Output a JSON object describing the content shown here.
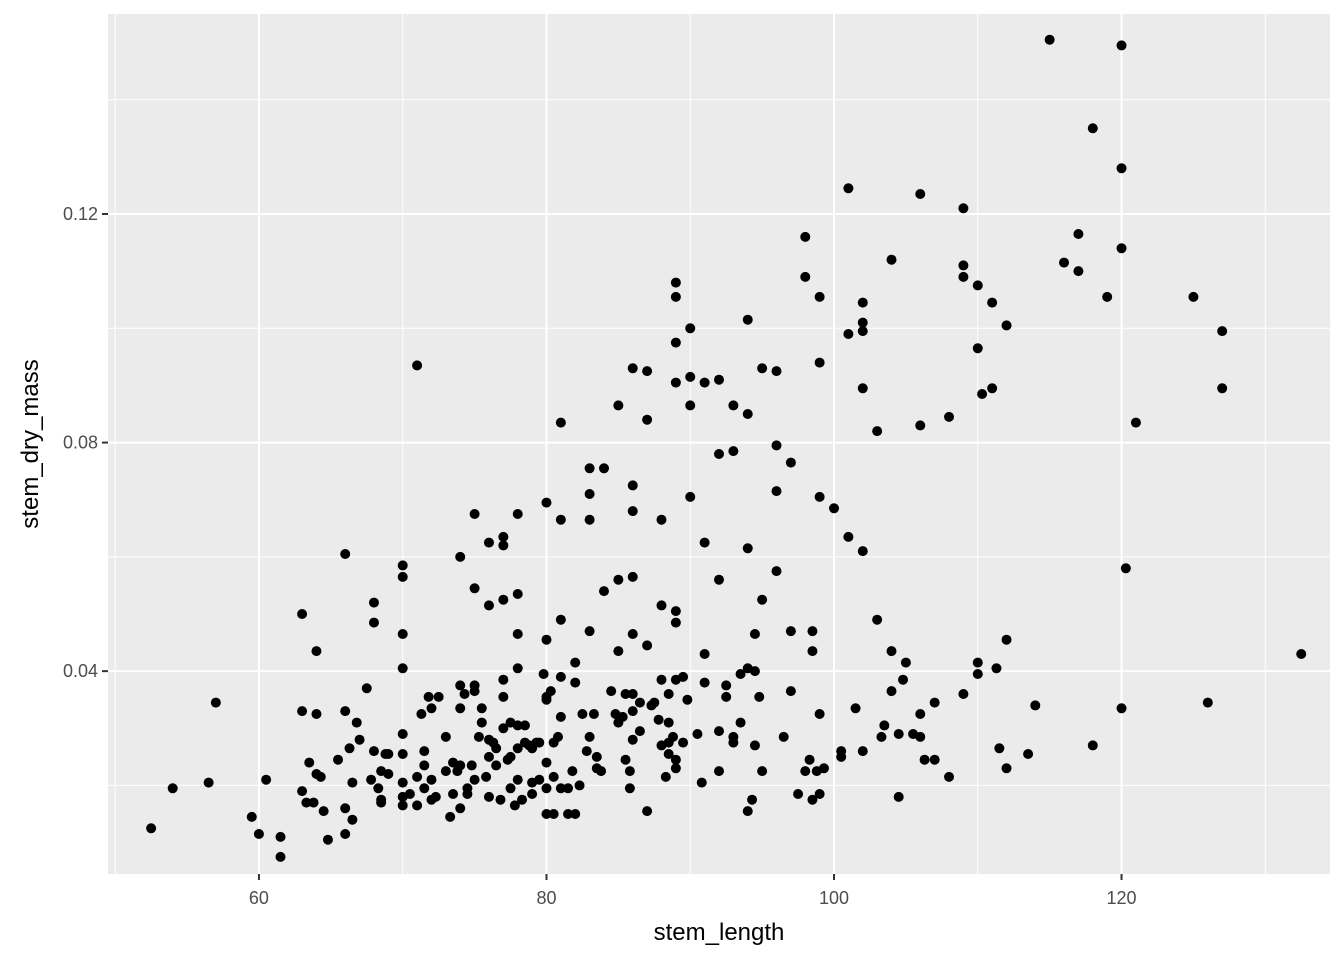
{
  "chart_data": {
    "type": "scatter",
    "title": "",
    "xlabel": "stem_length",
    "ylabel": "stem_dry_mass",
    "xlim": [
      49.5,
      134.5
    ],
    "ylim": [
      0.0045,
      0.155
    ],
    "x_ticks": [
      60,
      80,
      100,
      120
    ],
    "x_tick_labels": [
      "60",
      "80",
      "100",
      "120"
    ],
    "y_ticks": [
      0.04,
      0.08,
      0.12
    ],
    "y_tick_labels": [
      "0.04",
      "0.08",
      "0.12"
    ],
    "grid": true,
    "colors": {
      "panel": "#ebebeb",
      "grid": "#ffffff",
      "point": "#000000"
    },
    "points": [
      [
        52.5,
        0.0125
      ],
      [
        54,
        0.0195
      ],
      [
        56.5,
        0.0205
      ],
      [
        57,
        0.0345
      ],
      [
        59.5,
        0.0145
      ],
      [
        60,
        0.0115
      ],
      [
        60.5,
        0.021
      ],
      [
        61.5,
        0.011
      ],
      [
        61.5,
        0.0075
      ],
      [
        63,
        0.05
      ],
      [
        63,
        0.033
      ],
      [
        63,
        0.019
      ],
      [
        63.3,
        0.017
      ],
      [
        63.5,
        0.024
      ],
      [
        63.8,
        0.017
      ],
      [
        64,
        0.022
      ],
      [
        64,
        0.0325
      ],
      [
        64,
        0.0435
      ],
      [
        64.3,
        0.0215
      ],
      [
        64.5,
        0.0155
      ],
      [
        64.8,
        0.0105
      ],
      [
        65.5,
        0.0245
      ],
      [
        66,
        0.016
      ],
      [
        66,
        0.0605
      ],
      [
        66,
        0.033
      ],
      [
        66,
        0.0115
      ],
      [
        66.3,
        0.0265
      ],
      [
        66.5,
        0.0205
      ],
      [
        66.5,
        0.014
      ],
      [
        66.8,
        0.031
      ],
      [
        67,
        0.028
      ],
      [
        67.5,
        0.037
      ],
      [
        67.8,
        0.021
      ],
      [
        68,
        0.052
      ],
      [
        68,
        0.0485
      ],
      [
        68,
        0.026
      ],
      [
        68.3,
        0.0195
      ],
      [
        68.5,
        0.0175
      ],
      [
        68.5,
        0.0225
      ],
      [
        68.5,
        0.017
      ],
      [
        68.8,
        0.0255
      ],
      [
        69,
        0.0255
      ],
      [
        69,
        0.022
      ],
      [
        70,
        0.0585
      ],
      [
        70,
        0.0565
      ],
      [
        70,
        0.0465
      ],
      [
        70,
        0.0405
      ],
      [
        70,
        0.029
      ],
      [
        70,
        0.0255
      ],
      [
        70,
        0.0205
      ],
      [
        70,
        0.018
      ],
      [
        70,
        0.0165
      ],
      [
        70.5,
        0.0185
      ],
      [
        71,
        0.0935
      ],
      [
        71,
        0.0215
      ],
      [
        71,
        0.0165
      ],
      [
        71.3,
        0.0325
      ],
      [
        71.5,
        0.026
      ],
      [
        71.5,
        0.0235
      ],
      [
        71.5,
        0.0195
      ],
      [
        71.8,
        0.0355
      ],
      [
        72,
        0.0335
      ],
      [
        72,
        0.021
      ],
      [
        72,
        0.0175
      ],
      [
        72.3,
        0.018
      ],
      [
        72.5,
        0.0355
      ],
      [
        73,
        0.0285
      ],
      [
        73,
        0.0225
      ],
      [
        73.3,
        0.0145
      ],
      [
        73.5,
        0.024
      ],
      [
        73.5,
        0.0185
      ],
      [
        73.8,
        0.0225
      ],
      [
        74,
        0.0375
      ],
      [
        74,
        0.0335
      ],
      [
        74,
        0.0235
      ],
      [
        74,
        0.016
      ],
      [
        74,
        0.06
      ],
      [
        74.3,
        0.036
      ],
      [
        74.5,
        0.0185
      ],
      [
        74.5,
        0.0195
      ],
      [
        74.8,
        0.0235
      ],
      [
        75,
        0.0545
      ],
      [
        75,
        0.0375
      ],
      [
        75,
        0.0365
      ],
      [
        75,
        0.0675
      ],
      [
        75,
        0.021
      ],
      [
        75.3,
        0.0285
      ],
      [
        75.5,
        0.0335
      ],
      [
        75.5,
        0.031
      ],
      [
        75.8,
        0.0215
      ],
      [
        76,
        0.0625
      ],
      [
        76,
        0.0515
      ],
      [
        76,
        0.028
      ],
      [
        76,
        0.025
      ],
      [
        76,
        0.018
      ],
      [
        76.3,
        0.0275
      ],
      [
        76.5,
        0.0265
      ],
      [
        76.5,
        0.0235
      ],
      [
        76.8,
        0.0175
      ],
      [
        77,
        0.0635
      ],
      [
        77,
        0.062
      ],
      [
        77,
        0.0525
      ],
      [
        77,
        0.0385
      ],
      [
        77,
        0.0355
      ],
      [
        77,
        0.03
      ],
      [
        77.3,
        0.0245
      ],
      [
        77.5,
        0.031
      ],
      [
        77.5,
        0.025
      ],
      [
        77.5,
        0.0195
      ],
      [
        77.8,
        0.0165
      ],
      [
        78,
        0.0675
      ],
      [
        78,
        0.0535
      ],
      [
        78,
        0.0465
      ],
      [
        78,
        0.0405
      ],
      [
        78,
        0.0305
      ],
      [
        78,
        0.0265
      ],
      [
        78,
        0.021
      ],
      [
        78.3,
        0.0175
      ],
      [
        78.5,
        0.0305
      ],
      [
        78.5,
        0.0275
      ],
      [
        78.8,
        0.027
      ],
      [
        79,
        0.0265
      ],
      [
        79,
        0.0205
      ],
      [
        79,
        0.0185
      ],
      [
        79.3,
        0.0275
      ],
      [
        79.5,
        0.0275
      ],
      [
        79.5,
        0.021
      ],
      [
        79.8,
        0.0395
      ],
      [
        80,
        0.0695
      ],
      [
        80,
        0.0455
      ],
      [
        80,
        0.0355
      ],
      [
        80,
        0.035
      ],
      [
        80,
        0.024
      ],
      [
        80,
        0.0195
      ],
      [
        80,
        0.015
      ],
      [
        80.3,
        0.0365
      ],
      [
        80.5,
        0.0275
      ],
      [
        80.5,
        0.0215
      ],
      [
        80.5,
        0.015
      ],
      [
        80.8,
        0.0285
      ],
      [
        81,
        0.0835
      ],
      [
        81,
        0.0665
      ],
      [
        81,
        0.049
      ],
      [
        81,
        0.039
      ],
      [
        81,
        0.032
      ],
      [
        81,
        0.0195
      ],
      [
        81.5,
        0.0195
      ],
      [
        81.5,
        0.015
      ],
      [
        81.8,
        0.0225
      ],
      [
        82,
        0.0415
      ],
      [
        82,
        0.038
      ],
      [
        82,
        0.015
      ],
      [
        82.3,
        0.02
      ],
      [
        82.5,
        0.0325
      ],
      [
        82.8,
        0.026
      ],
      [
        83,
        0.0755
      ],
      [
        83,
        0.071
      ],
      [
        83,
        0.0665
      ],
      [
        83,
        0.047
      ],
      [
        83,
        0.0285
      ],
      [
        83.3,
        0.0325
      ],
      [
        83.5,
        0.025
      ],
      [
        83.5,
        0.023
      ],
      [
        83.8,
        0.0225
      ],
      [
        84,
        0.0755
      ],
      [
        84,
        0.054
      ],
      [
        84.5,
        0.0365
      ],
      [
        84.8,
        0.0325
      ],
      [
        85,
        0.0865
      ],
      [
        85,
        0.056
      ],
      [
        85,
        0.0435
      ],
      [
        85,
        0.031
      ],
      [
        85.3,
        0.032
      ],
      [
        85.5,
        0.036
      ],
      [
        85.5,
        0.0245
      ],
      [
        85.8,
        0.0225
      ],
      [
        85.8,
        0.0195
      ],
      [
        86,
        0.093
      ],
      [
        86,
        0.0725
      ],
      [
        86,
        0.068
      ],
      [
        86,
        0.0565
      ],
      [
        86,
        0.0465
      ],
      [
        86,
        0.036
      ],
      [
        86,
        0.033
      ],
      [
        86,
        0.028
      ],
      [
        86.5,
        0.0345
      ],
      [
        86.5,
        0.0295
      ],
      [
        87,
        0.0925
      ],
      [
        87,
        0.084
      ],
      [
        87,
        0.0445
      ],
      [
        87,
        0.0155
      ],
      [
        87.3,
        0.034
      ],
      [
        87.5,
        0.0345
      ],
      [
        87.8,
        0.0315
      ],
      [
        88,
        0.0665
      ],
      [
        88,
        0.0515
      ],
      [
        88,
        0.0385
      ],
      [
        88,
        0.027
      ],
      [
        88.3,
        0.0215
      ],
      [
        88.5,
        0.036
      ],
      [
        88.5,
        0.031
      ],
      [
        88.5,
        0.0275
      ],
      [
        88.5,
        0.0255
      ],
      [
        88.8,
        0.0285
      ],
      [
        89,
        0.108
      ],
      [
        89,
        0.1055
      ],
      [
        89,
        0.0975
      ],
      [
        89,
        0.0905
      ],
      [
        89,
        0.0505
      ],
      [
        89,
        0.0485
      ],
      [
        89,
        0.0385
      ],
      [
        89,
        0.0245
      ],
      [
        89,
        0.023
      ],
      [
        89.5,
        0.039
      ],
      [
        89.5,
        0.0275
      ],
      [
        89.8,
        0.035
      ],
      [
        90,
        0.1
      ],
      [
        90,
        0.0915
      ],
      [
        90,
        0.0865
      ],
      [
        90,
        0.0705
      ],
      [
        90.5,
        0.029
      ],
      [
        90.8,
        0.0205
      ],
      [
        91,
        0.0905
      ],
      [
        91,
        0.0625
      ],
      [
        91,
        0.043
      ],
      [
        91,
        0.038
      ],
      [
        92,
        0.091
      ],
      [
        92,
        0.078
      ],
      [
        92,
        0.056
      ],
      [
        92,
        0.0295
      ],
      [
        92,
        0.0225
      ],
      [
        92.5,
        0.0355
      ],
      [
        92.5,
        0.0375
      ],
      [
        93,
        0.0865
      ],
      [
        93,
        0.0785
      ],
      [
        93,
        0.0285
      ],
      [
        93,
        0.0275
      ],
      [
        93.5,
        0.0395
      ],
      [
        93.5,
        0.031
      ],
      [
        94,
        0.1015
      ],
      [
        94,
        0.085
      ],
      [
        94,
        0.0615
      ],
      [
        94,
        0.0405
      ],
      [
        94,
        0.0155
      ],
      [
        94.3,
        0.0175
      ],
      [
        94.5,
        0.0465
      ],
      [
        94.5,
        0.04
      ],
      [
        94.5,
        0.027
      ],
      [
        94.8,
        0.0355
      ],
      [
        95,
        0.093
      ],
      [
        95,
        0.0525
      ],
      [
        95,
        0.0225
      ],
      [
        96,
        0.0795
      ],
      [
        96,
        0.0925
      ],
      [
        96,
        0.0715
      ],
      [
        96,
        0.0575
      ],
      [
        96.5,
        0.0285
      ],
      [
        97,
        0.0765
      ],
      [
        97,
        0.0365
      ],
      [
        97,
        0.047
      ],
      [
        97.5,
        0.0185
      ],
      [
        98,
        0.116
      ],
      [
        98,
        0.109
      ],
      [
        98,
        0.0225
      ],
      [
        98.3,
        0.0245
      ],
      [
        98.5,
        0.047
      ],
      [
        98.5,
        0.0435
      ],
      [
        98.5,
        0.0175
      ],
      [
        98.8,
        0.0225
      ],
      [
        99,
        0.1055
      ],
      [
        99,
        0.094
      ],
      [
        99,
        0.0705
      ],
      [
        99,
        0.0325
      ],
      [
        99,
        0.0185
      ],
      [
        99.3,
        0.023
      ],
      [
        100,
        0.0685
      ],
      [
        100.5,
        0.026
      ],
      [
        100.5,
        0.025
      ],
      [
        101,
        0.1245
      ],
      [
        101,
        0.099
      ],
      [
        101,
        0.0635
      ],
      [
        101.5,
        0.0335
      ],
      [
        102,
        0.1045
      ],
      [
        102,
        0.101
      ],
      [
        102,
        0.0995
      ],
      [
        102,
        0.0895
      ],
      [
        102,
        0.061
      ],
      [
        102,
        0.026
      ],
      [
        103,
        0.082
      ],
      [
        103,
        0.049
      ],
      [
        103.3,
        0.0285
      ],
      [
        103.5,
        0.0305
      ],
      [
        104,
        0.112
      ],
      [
        104,
        0.0435
      ],
      [
        104,
        0.0365
      ],
      [
        104.5,
        0.018
      ],
      [
        104.5,
        0.029
      ],
      [
        104.8,
        0.0385
      ],
      [
        105,
        0.0415
      ],
      [
        105.5,
        0.029
      ],
      [
        106,
        0.1235
      ],
      [
        106,
        0.083
      ],
      [
        106,
        0.0325
      ],
      [
        106,
        0.0285
      ],
      [
        106.3,
        0.0245
      ],
      [
        107,
        0.0245
      ],
      [
        107,
        0.0345
      ],
      [
        108,
        0.0845
      ],
      [
        108,
        0.0215
      ],
      [
        109,
        0.121
      ],
      [
        109,
        0.111
      ],
      [
        109,
        0.109
      ],
      [
        109,
        0.036
      ],
      [
        110,
        0.1075
      ],
      [
        110,
        0.0965
      ],
      [
        110,
        0.0395
      ],
      [
        110,
        0.0415
      ],
      [
        110.3,
        0.0885
      ],
      [
        111,
        0.1045
      ],
      [
        111,
        0.0895
      ],
      [
        111.3,
        0.0405
      ],
      [
        111.5,
        0.0265
      ],
      [
        112,
        0.1005
      ],
      [
        112,
        0.0455
      ],
      [
        112,
        0.023
      ],
      [
        113.5,
        0.0255
      ],
      [
        114,
        0.034
      ],
      [
        115,
        0.1505
      ],
      [
        116,
        0.1115
      ],
      [
        117,
        0.1165
      ],
      [
        117,
        0.11
      ],
      [
        118,
        0.135
      ],
      [
        118,
        0.027
      ],
      [
        119,
        0.1055
      ],
      [
        120,
        0.1495
      ],
      [
        120,
        0.128
      ],
      [
        120,
        0.114
      ],
      [
        120,
        0.0335
      ],
      [
        120.3,
        0.058
      ],
      [
        121,
        0.0835
      ],
      [
        125,
        0.1055
      ],
      [
        126,
        0.0345
      ],
      [
        127,
        0.0995
      ],
      [
        127,
        0.0895
      ],
      [
        132.5,
        0.043
      ]
    ]
  }
}
